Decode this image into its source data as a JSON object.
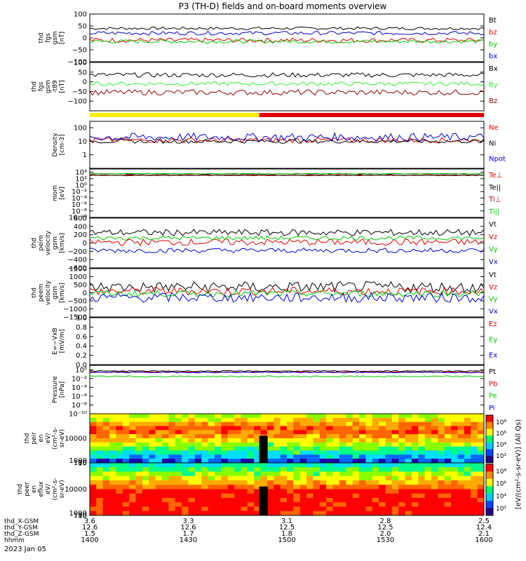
{
  "title": "P3 (TH-D) fields and on-board moments overview",
  "colors": {
    "black": "#000000",
    "red": "#e00000",
    "green": "#00cc00",
    "blue": "#0000d0",
    "darkred": "#8b0000",
    "yellow": "#ffee00",
    "spring_green": "#33ee33"
  },
  "chart_data": [
    {
      "type": "line",
      "id": "fgs_gsm",
      "ylabel_lines": [
        "thd",
        "fgs",
        "gsm",
        "[nT]"
      ],
      "ylim": [
        -100,
        100
      ],
      "ticks": [
        "100",
        "50",
        "0",
        "−50",
        "−100"
      ],
      "tick_values": [
        100,
        50,
        0,
        -50,
        -100
      ],
      "series": [
        {
          "name": "Bt",
          "color": "black",
          "level": 40,
          "noise": 6
        },
        {
          "name": "bz",
          "color": "red",
          "level": -10,
          "noise": 10
        },
        {
          "name": "by",
          "color": "green",
          "level": -15,
          "noise": 8
        },
        {
          "name": "bx",
          "color": "blue",
          "level": 20,
          "noise": 8
        }
      ]
    },
    {
      "type": "line",
      "id": "fgs_gsm_dipole",
      "ylabel_lines": [
        "thd",
        "fgs",
        "gsm",
        "-t89",
        "[nT]"
      ],
      "ylim": [
        -150,
        100
      ],
      "ticks": [
        "100",
        "50",
        "0",
        "−50",
        "−100"
      ],
      "tick_values": [
        100,
        50,
        0,
        -50,
        -100
      ],
      "series": [
        {
          "name": "Bx",
          "color": "black",
          "level": 35,
          "noise": 12
        },
        {
          "name": "By",
          "color": "spring_green",
          "level": -10,
          "noise": 10
        },
        {
          "name": "Bz",
          "color": "darkred",
          "level": -55,
          "noise": 14
        }
      ]
    },
    {
      "type": "line",
      "id": "density",
      "ylabel_lines": [
        "Density",
        "[cm-3]"
      ],
      "log": true,
      "ylim": [
        0.1,
        300
      ],
      "ticks": [
        "100",
        "10",
        "1"
      ],
      "tick_values": [
        100,
        10,
        1
      ],
      "series": [
        {
          "name": "Ne",
          "color": "red",
          "level": 12,
          "noise": 0.2
        },
        {
          "name": "Ni",
          "color": "black",
          "level": 10,
          "noise": 0.15
        },
        {
          "name": "Npot",
          "color": "blue",
          "level": 20,
          "noise": 0.3
        }
      ]
    },
    {
      "type": "line",
      "id": "temperature",
      "ylabel_lines": [
        "mom",
        "[eV]"
      ],
      "log": true,
      "ylim": [
        1e-10,
        100000.0
      ],
      "ticks": [
        "10⁴",
        "10²",
        "10⁰",
        "10⁻²",
        "10⁻⁴",
        "10⁻⁶",
        "10⁻⁸",
        "10⁻¹⁰"
      ],
      "tick_values": [
        10000.0,
        100.0,
        1,
        0.01,
        0.0001,
        1e-06,
        1e-08,
        1e-10
      ],
      "series": [
        {
          "name": "Te⊥",
          "color": "red",
          "level": 1000,
          "noise": 0.1
        },
        {
          "name": "Te||",
          "color": "black",
          "level": 1200,
          "noise": 0.1
        },
        {
          "name": "Ti⊥",
          "color": "darkred",
          "level": 3000,
          "noise": 0.1
        },
        {
          "name": "Ti||",
          "color": "green",
          "level": 3500,
          "noise": 0.1
        }
      ]
    },
    {
      "type": "line",
      "id": "peim_velocity",
      "ylabel_lines": [
        "thd",
        "peim",
        "velocity",
        "gsm",
        "[km/s]"
      ],
      "ylim": [
        -600,
        600
      ],
      "ticks": [
        "600",
        "400",
        "200",
        "0",
        "−200",
        "−400",
        "−600"
      ],
      "tick_values": [
        600,
        400,
        200,
        0,
        -200,
        -400,
        -600
      ],
      "series": [
        {
          "name": "Vt",
          "color": "black",
          "level": 250,
          "noise": 80
        },
        {
          "name": "Vz",
          "color": "red",
          "level": 20,
          "noise": 80
        },
        {
          "name": "Vy",
          "color": "green",
          "level": 120,
          "noise": 50
        },
        {
          "name": "Vx",
          "color": "blue",
          "level": -180,
          "noise": 60
        }
      ]
    },
    {
      "type": "line",
      "id": "peem_velocity",
      "ylabel_lines": [
        "thd",
        "peem",
        "velocity",
        "gsm",
        "[km/s]"
      ],
      "ylim": [
        -1500,
        1500
      ],
      "ticks": [
        "1500",
        "1000",
        "500",
        "0",
        "−500",
        "−1000",
        "−1500"
      ],
      "tick_values": [
        1500,
        1000,
        500,
        0,
        -500,
        -1000,
        -1500
      ],
      "series": [
        {
          "name": "Vt",
          "color": "black",
          "level": 350,
          "noise": 350
        },
        {
          "name": "Vz",
          "color": "red",
          "level": 100,
          "noise": 250
        },
        {
          "name": "Vy",
          "color": "green",
          "level": -50,
          "noise": 200
        },
        {
          "name": "Vx",
          "color": "blue",
          "level": -300,
          "noise": 300
        }
      ]
    },
    {
      "type": "line",
      "id": "efield",
      "ylabel_lines": [
        "E=−VxB",
        "[mV/m]"
      ],
      "ylim": [
        0,
        1
      ],
      "ticks": [
        "1.0",
        "0.8",
        "0.6",
        "0.4",
        "0.2",
        "0.0"
      ],
      "tick_values": [
        1.0,
        0.8,
        0.6,
        0.4,
        0.2,
        0.0
      ],
      "series": [
        {
          "name": "Ez",
          "color": "red",
          "empty": true
        },
        {
          "name": "Ey",
          "color": "green",
          "empty": true
        },
        {
          "name": "Ex",
          "color": "blue",
          "empty": true
        }
      ]
    },
    {
      "type": "line",
      "id": "pressure",
      "ylabel_lines": [
        "Pressure",
        "[nPa]"
      ],
      "log": true,
      "ylim": [
        1e-10,
        10
      ],
      "ticks": [
        "10⁰",
        "10⁻²",
        "10⁻⁴",
        "10⁻⁶",
        "10⁻⁸",
        "10⁻¹⁰"
      ],
      "tick_values": [
        1,
        0.01,
        0.0001,
        1e-06,
        1e-08,
        1e-10
      ],
      "series": [
        {
          "name": "Pt",
          "color": "black",
          "level": 0.5,
          "noise": 0.1
        },
        {
          "name": "Pb",
          "color": "red",
          "level": 0.3,
          "noise": 0.1
        },
        {
          "name": "Pe",
          "color": "green",
          "level": 0.03,
          "noise": 0.15
        },
        {
          "name": "Pi",
          "color": "blue",
          "level": 0.25,
          "noise": 0.1
        }
      ]
    },
    {
      "type": "heatmap",
      "id": "peir_eflux",
      "ylabel_lines": [
        "thd",
        "peir",
        "en",
        "eV/",
        "(cm²-s-",
        "sr-eV)"
      ],
      "ticks": [
        "10000",
        "1000",
        "100",
        "10"
      ],
      "tick_values": [
        10000,
        1000,
        100,
        10
      ],
      "ylim": [
        5,
        20000
      ]
    },
    {
      "type": "heatmap",
      "id": "peer_eflux",
      "ylabel_lines": [
        "thd",
        "peer",
        "en",
        "eflux",
        "eV/",
        "(cm²-s-",
        "sr-eV)"
      ],
      "ticks": [
        "10000",
        "1000",
        "100",
        "10"
      ],
      "tick_values": [
        10000,
        1000,
        100,
        10
      ],
      "ylim": [
        5,
        20000
      ]
    }
  ],
  "mode_bar": {
    "segments": [
      {
        "color": "yellow",
        "from": 0,
        "to": 0.43
      },
      {
        "color": "red",
        "from": 0.43,
        "to": 1
      }
    ]
  },
  "colorbar": {
    "label": "[eV/(cm²-s-sr-eV)] (All Qs)",
    "ticks_upper": [
      "10⁸",
      "10⁶",
      "10⁴",
      "10²"
    ],
    "ticks_lower": [
      "10⁸",
      "10⁶",
      "10⁴",
      "10²"
    ]
  },
  "x_axis": {
    "rows": [
      {
        "label": "thd_X-GSM",
        "values": [
          "3.6",
          "3.3",
          "3.1",
          "2.8",
          "2.5"
        ]
      },
      {
        "label": "thd_Y-GSM",
        "values": [
          "12.6",
          "12.6",
          "12.5",
          "12.5",
          "12.4"
        ]
      },
      {
        "label": "thd_Z-GSM",
        "values": [
          "1.5",
          "1.7",
          "1.8",
          "2.0",
          "2.1"
        ]
      },
      {
        "label": "hhmm",
        "values": [
          "1400",
          "1430",
          "1500",
          "1530",
          "1600"
        ]
      }
    ],
    "date": "2023 Jan 05"
  }
}
